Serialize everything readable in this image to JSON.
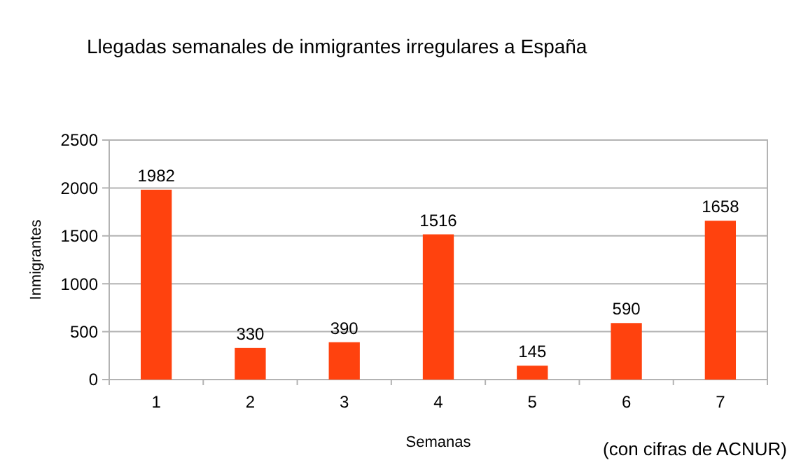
{
  "chart_data": {
    "type": "bar",
    "title": "Llegadas semanales de inmigrantes irregulares a España",
    "xlabel": "Semanas",
    "ylabel": "Inmigrantes",
    "categories": [
      "1",
      "2",
      "3",
      "4",
      "5",
      "6",
      "7"
    ],
    "values": [
      1982,
      330,
      390,
      1516,
      145,
      590,
      1658
    ],
    "color": "#ff420e",
    "ylim": [
      0,
      2500
    ],
    "yticks": [
      0,
      500,
      1000,
      1500,
      2000,
      2500
    ],
    "grid": "y",
    "data_labels": true,
    "annotations": [
      "(con cifras de ACNUR)"
    ]
  }
}
